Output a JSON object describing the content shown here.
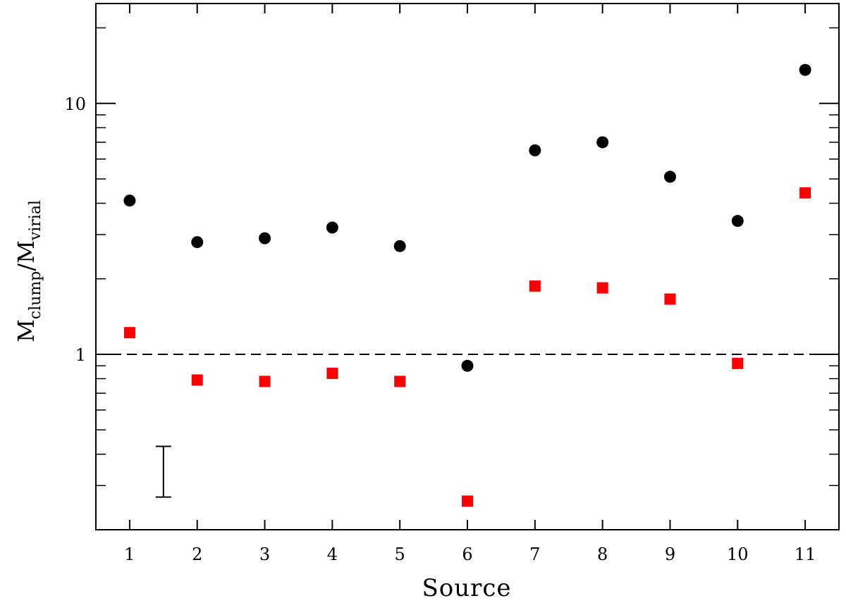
{
  "chart_data": {
    "type": "scatter",
    "xlabel": "Source",
    "ylabel": {
      "part1_main": "M",
      "part1_sub": "clump",
      "separator": "/",
      "part2_main": "M",
      "part2_sub": "virial"
    },
    "x_ticks": [
      "1",
      "2",
      "3",
      "4",
      "5",
      "6",
      "7",
      "8",
      "9",
      "10",
      "11"
    ],
    "y_tick_labels": [
      "1",
      "10"
    ],
    "y_scale": "log",
    "ylim": [
      0.2,
      25
    ],
    "xlim": [
      0.5,
      11.5
    ],
    "reference_line": {
      "y": 1,
      "style": "dashed"
    },
    "error_bar_example": {
      "x": 1.5,
      "low": 0.27,
      "high": 0.43
    },
    "series": [
      {
        "marker": "circle",
        "color": "#000000",
        "x": [
          1,
          2,
          3,
          4,
          5,
          6,
          7,
          8,
          9,
          10,
          11
        ],
        "values": [
          4.1,
          2.8,
          2.9,
          3.2,
          2.7,
          0.9,
          6.5,
          7.0,
          5.1,
          3.4,
          13.6
        ]
      },
      {
        "marker": "square",
        "color": "#ff0000",
        "x": [
          1,
          2,
          3,
          4,
          5,
          6,
          7,
          8,
          9,
          10,
          11
        ],
        "values": [
          1.22,
          0.79,
          0.78,
          0.84,
          0.78,
          0.26,
          1.87,
          1.84,
          1.66,
          0.92,
          4.4
        ]
      }
    ]
  }
}
